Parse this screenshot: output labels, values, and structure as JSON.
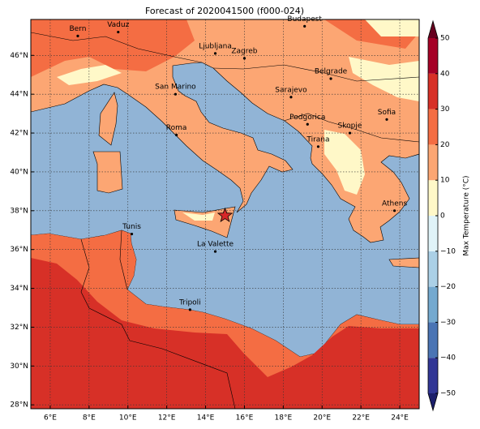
{
  "map": {
    "title": "Forecast of 2020041500 (f000-024)",
    "lonlim": [
      5,
      25
    ],
    "latlim": [
      27.8,
      47.85
    ],
    "grid": true,
    "xticks": [
      {
        "value": 6,
        "label": "6°E"
      },
      {
        "value": 8,
        "label": "8°E"
      },
      {
        "value": 10,
        "label": "10°E"
      },
      {
        "value": 12,
        "label": "12°E"
      },
      {
        "value": 14,
        "label": "14°E"
      },
      {
        "value": 16,
        "label": "16°E"
      },
      {
        "value": 18,
        "label": "18°E"
      },
      {
        "value": 20,
        "label": "20°E"
      },
      {
        "value": 22,
        "label": "22°E"
      },
      {
        "value": 24,
        "label": "24°E"
      }
    ],
    "yticks": [
      {
        "value": 28,
        "label": "28°N"
      },
      {
        "value": 30,
        "label": "30°N"
      },
      {
        "value": 32,
        "label": "32°N"
      },
      {
        "value": 34,
        "label": "34°N"
      },
      {
        "value": 36,
        "label": "36°N"
      },
      {
        "value": 38,
        "label": "38°N"
      },
      {
        "value": 40,
        "label": "40°N"
      },
      {
        "value": 42,
        "label": "42°N"
      },
      {
        "value": 44,
        "label": "44°N"
      },
      {
        "value": 46,
        "label": "46°N"
      }
    ],
    "cities": [
      {
        "name": "Bern",
        "lon": 7.42,
        "lat": 47.0
      },
      {
        "name": "Vaduz",
        "lon": 9.5,
        "lat": 47.2
      },
      {
        "name": "Budapest",
        "lon": 19.1,
        "lat": 47.5
      },
      {
        "name": "Ljubljana",
        "lon": 14.5,
        "lat": 46.1
      },
      {
        "name": "Zagreb",
        "lon": 16.0,
        "lat": 45.85
      },
      {
        "name": "Belgrade",
        "lon": 20.45,
        "lat": 44.8
      },
      {
        "name": "San Marino",
        "lon": 12.45,
        "lat": 44.0
      },
      {
        "name": "Sarajevo",
        "lon": 18.4,
        "lat": 43.85
      },
      {
        "name": "Sofia",
        "lon": 23.33,
        "lat": 42.7
      },
      {
        "name": "Podgorica",
        "lon": 19.25,
        "lat": 42.45
      },
      {
        "name": "Skopje",
        "lon": 21.43,
        "lat": 42.0
      },
      {
        "name": "Roma",
        "lon": 12.5,
        "lat": 41.9
      },
      {
        "name": "Tirana",
        "lon": 19.8,
        "lat": 41.3
      },
      {
        "name": "Athens",
        "lon": 23.73,
        "lat": 38.0
      },
      {
        "name": "Tunis",
        "lon": 10.2,
        "lat": 36.8
      },
      {
        "name": "La Valette",
        "lon": 14.5,
        "lat": 35.9
      },
      {
        "name": "Tripoli",
        "lon": 13.2,
        "lat": 32.9
      }
    ],
    "marker": {
      "lon": 15.0,
      "lat": 37.75,
      "color": "#d62728"
    },
    "colorbar": {
      "label": "Max Temperature (°C)",
      "ticks": [
        {
          "value": -50,
          "label": "−50"
        },
        {
          "value": -40,
          "label": "−40"
        },
        {
          "value": -30,
          "label": "−30"
        },
        {
          "value": -20,
          "label": "−20"
        },
        {
          "value": -10,
          "label": "−10"
        },
        0,
        10,
        20,
        30,
        40,
        50
      ],
      "colors": [
        "#313695",
        "#4a74b4",
        "#74a9cf",
        "#abd0e6",
        "#e0f3f8",
        "#fff8c8",
        "#fca673",
        "#f46d43",
        "#d73027",
        "#a50026"
      ],
      "under": "#1c1f6b",
      "over": "#67001f"
    }
  }
}
